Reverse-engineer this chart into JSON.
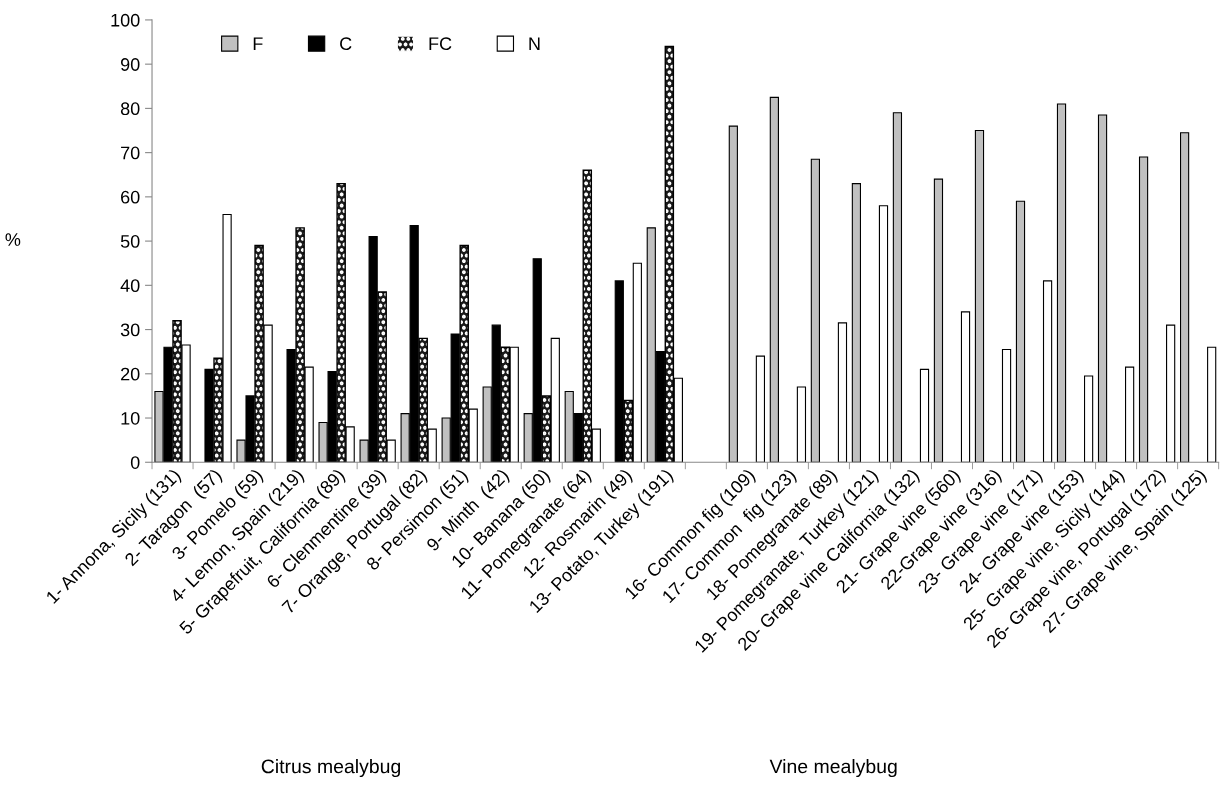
{
  "chart_data": {
    "type": "bar",
    "ylabel": "%",
    "categories": [
      "1- Annona, Sicily (131)",
      "2- Taragon  (57)",
      "3- Pomelo (59)",
      "4- Lemon, Spain (219)",
      "5- Grapefruit, California (89)",
      "6- Clenmentine (39)",
      "7- Orange, Portugal (82)",
      "8- Persimon (51)",
      "9- Minth  (42)",
      "10- Banana (50)",
      "11- Pomegranate (64)",
      "12- Rosmarin (49)",
      "13- Potato, Turkey (191)",
      null,
      "16- Common fig (109)",
      "17- Common  fig (123)",
      "18- Pomegranate (89)",
      "19- Pomegranate, Turkey (121)",
      "20- Grape vine California (132)",
      "21- Grape vine (560)",
      "22-Grape vine (316)",
      "23- Grape vine (171)",
      "24- Grape vine (153)",
      "25- Grape vine, Sicily (144)",
      "26- Grape vine, Portugal (172)",
      "27- Grape vine, Spain (125)"
    ],
    "series": [
      {
        "name": "F",
        "color": "#c0c0c0",
        "values": [
          16,
          null,
          5,
          null,
          9,
          5,
          11,
          10,
          17,
          11,
          16,
          null,
          53,
          null,
          76,
          82.5,
          68.5,
          63,
          79,
          64,
          75,
          59,
          81,
          78.5,
          69,
          74.5
        ]
      },
      {
        "name": "C",
        "color": "#000000",
        "values": [
          26,
          21,
          15,
          25.5,
          20.5,
          51,
          53.5,
          29,
          31,
          46,
          11,
          41,
          25,
          null,
          null,
          null,
          null,
          null,
          null,
          null,
          null,
          null,
          null,
          null,
          null,
          null
        ]
      },
      {
        "name": "FC",
        "color": "#1a1a1a",
        "values": [
          32,
          23.5,
          49,
          53,
          63,
          38.5,
          28,
          49,
          26,
          15,
          66,
          14,
          94,
          null,
          null,
          null,
          null,
          null,
          null,
          null,
          null,
          null,
          null,
          null,
          null,
          null
        ]
      },
      {
        "name": "N",
        "color": "#ffffff",
        "values": [
          26.5,
          56,
          31,
          21.5,
          8,
          5,
          7.5,
          12,
          26,
          28,
          7.5,
          45,
          19,
          null,
          24,
          17,
          31.5,
          58,
          21,
          34,
          25.5,
          41,
          19.5,
          21.5,
          31,
          26
        ]
      }
    ],
    "ylim": [
      0,
      100
    ],
    "yticks": [
      0,
      10,
      20,
      30,
      40,
      50,
      60,
      70,
      80,
      90,
      100
    ],
    "grid": false,
    "legend": "top left",
    "annotations": [
      "Citrus mealybug",
      "Vine mealybug"
    ]
  }
}
